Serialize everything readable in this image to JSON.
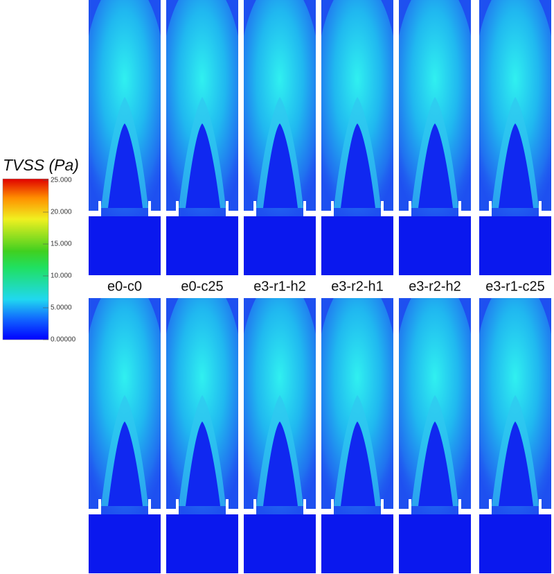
{
  "colorbar": {
    "title": "TVSS (Pa)",
    "ticks": [
      "25.000",
      "20.000",
      "15.000",
      "10.000",
      "5.0000",
      "0.00000"
    ]
  },
  "panels": [
    "e0-c0",
    "e0-c25",
    "e3-r1-h2",
    "e3-r2-h1",
    "e3-r2-h2",
    "e3-r1-c25"
  ]
}
